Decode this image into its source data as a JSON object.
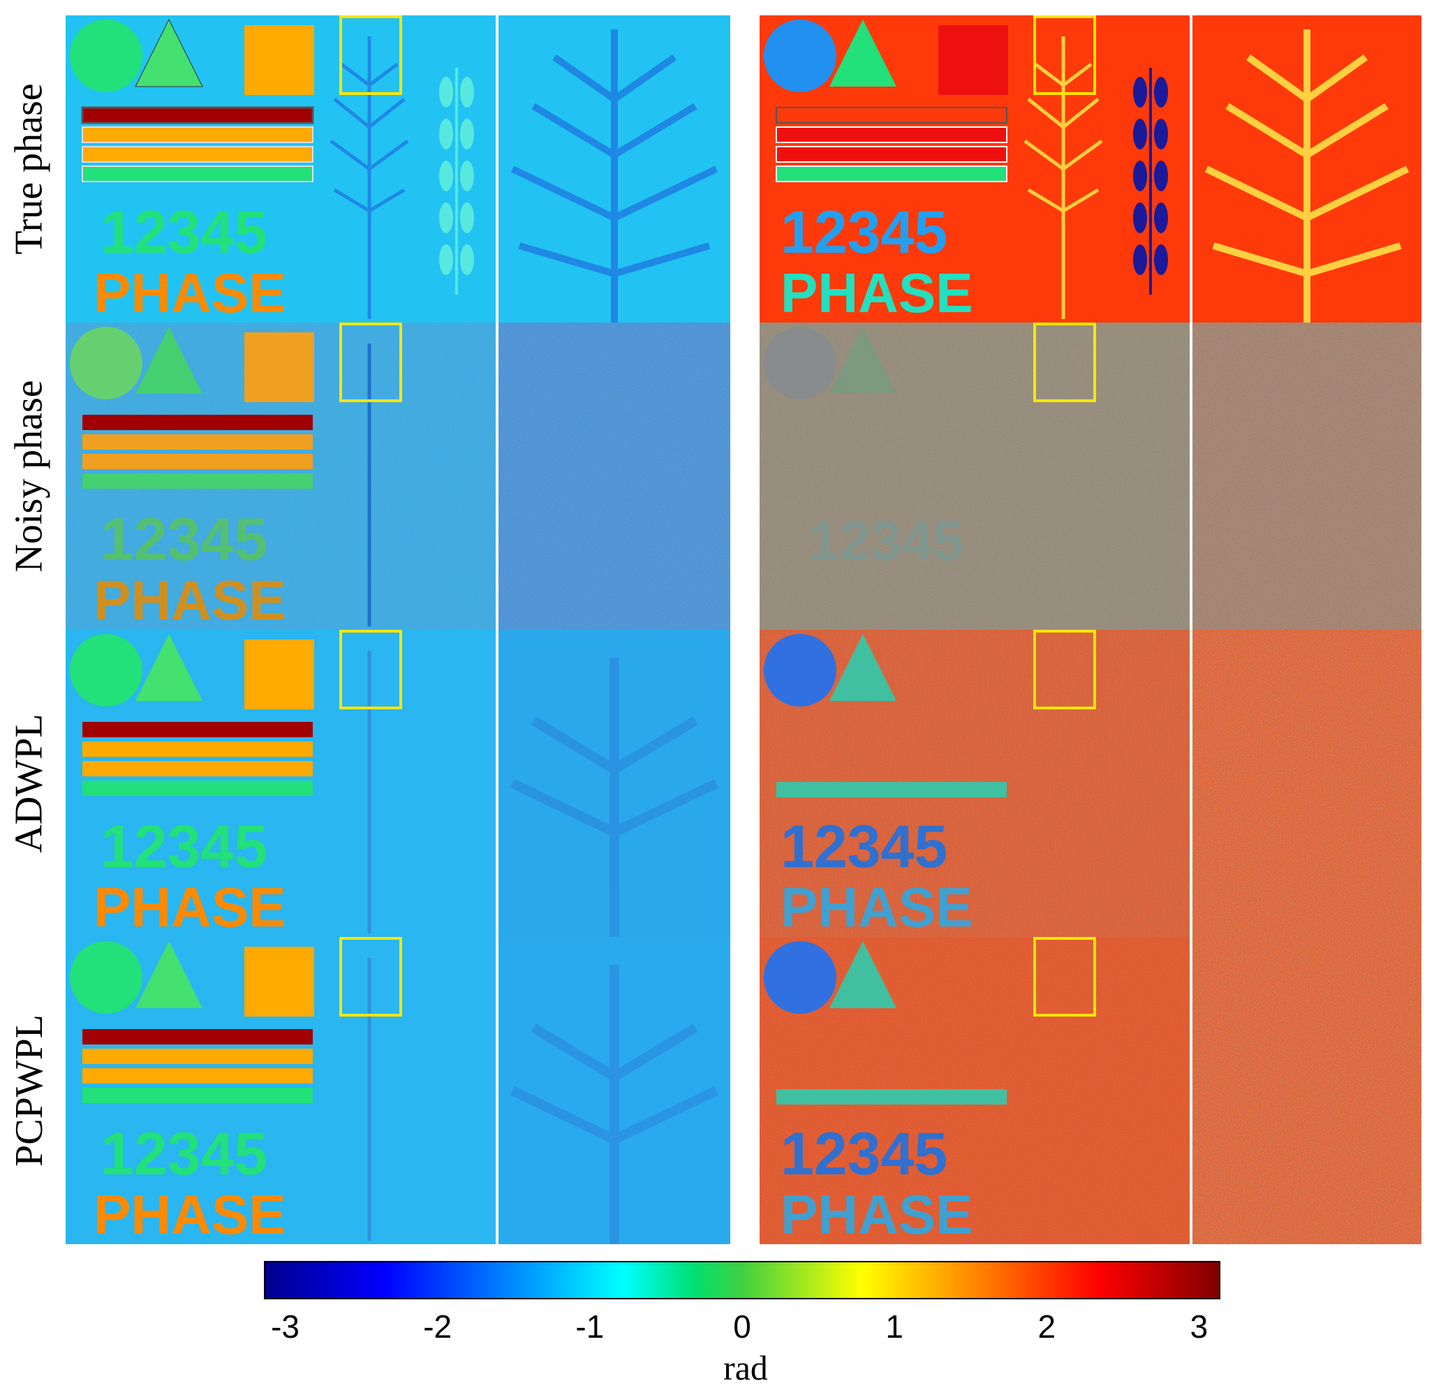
{
  "figure": {
    "row_labels": [
      "True phase",
      "Noisy phase",
      "ADWPL",
      "PCPWPL"
    ],
    "overlay_text": {
      "digits": "12345",
      "word": "PHASE"
    },
    "colorbar": {
      "ticks": [
        "-3",
        "-2",
        "-1",
        "0",
        "1",
        "2",
        "3"
      ],
      "tick_values": [
        -3,
        -2,
        -1,
        0,
        1,
        2,
        3
      ],
      "range": [
        -3.14,
        3.14
      ],
      "label": "rad"
    },
    "colors": {
      "left_background": "#22c3f2",
      "right_background": "#ff3a0a",
      "highlight_box": "#ffe600",
      "noise_neutral": "#8c7f6a"
    }
  }
}
